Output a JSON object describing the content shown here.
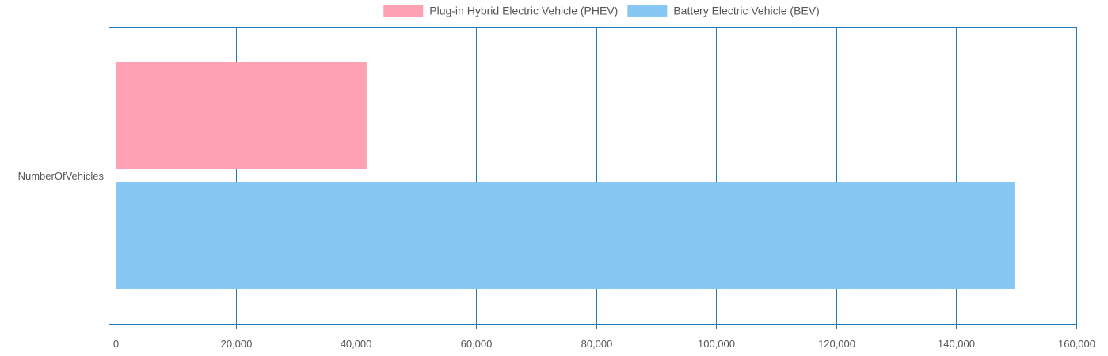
{
  "chart_data": {
    "type": "bar",
    "orientation": "horizontal",
    "categories": [
      "NumberOfVehicles"
    ],
    "series": [
      {
        "name": "Plug-in Hybrid Electric Vehicle (PHEV)",
        "values": [
          41800
        ],
        "color": "#ffa1b5",
        "border_color": "#ff6384"
      },
      {
        "name": "Battery Electric Vehicle (BEV)",
        "values": [
          149700
        ],
        "color": "#86c7f3",
        "border_color": "#36a2eb"
      }
    ],
    "xlim": [
      0,
      160000
    ],
    "x_ticks": [
      0,
      20000,
      40000,
      60000,
      80000,
      100000,
      120000,
      140000,
      160000
    ],
    "x_tick_labels": [
      "0",
      "20,000",
      "40,000",
      "60,000",
      "80,000",
      "100,000",
      "120,000",
      "140,000",
      "160,000"
    ],
    "grid": true,
    "grid_color": "#1f77b4",
    "legend_position": "top-center",
    "title": "",
    "xlabel": "",
    "ylabel": ""
  }
}
